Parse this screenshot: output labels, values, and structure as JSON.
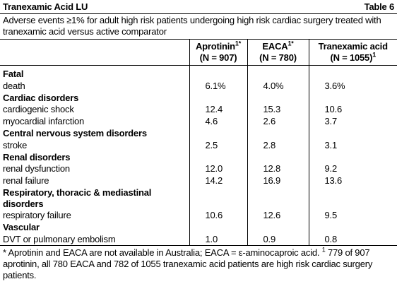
{
  "header": {
    "title": "Tranexamic Acid LU",
    "table_label": "Table 6"
  },
  "caption": "Adverse events ≥1% for adult high risk patients undergoing high risk cardiac surgery treated with tranexamic acid versus active comparator",
  "table": {
    "columns": [
      {
        "name": "Aprotinin",
        "sup": "1*",
        "n": "(N = 907)"
      },
      {
        "name": "EACA",
        "sup": "1*",
        "n": "(N = 780)"
      },
      {
        "name": "Tranexamic acid",
        "n": "(N = 1055)",
        "n_sup": "1"
      }
    ],
    "sections": [
      {
        "label": "Fatal",
        "rows": [
          [
            "death",
            "6.1%",
            "4.0%",
            "3.6%"
          ]
        ]
      },
      {
        "label": "Cardiac disorders",
        "rows": [
          [
            "cardiogenic shock",
            "12.4",
            "15.3",
            "10.6"
          ],
          [
            "myocardial infarction",
            "4.6",
            "2.6",
            "3.7"
          ]
        ]
      },
      {
        "label": "Central nervous system disorders",
        "rows": [
          [
            "stroke",
            "2.5",
            "2.8",
            "3.1"
          ]
        ]
      },
      {
        "label": "Renal disorders",
        "rows": [
          [
            "renal dysfunction",
            "12.0",
            "12.8",
            "9.2"
          ],
          [
            "renal failure",
            "14.2",
            "16.9",
            "13.6"
          ]
        ]
      },
      {
        "label": "Respiratory, thoracic & mediastinal disorders",
        "rows": [
          [
            "respiratory failure",
            "10.6",
            "12.6",
            "9.5"
          ]
        ]
      },
      {
        "label": "Vascular",
        "rows": [
          [
            "DVT or pulmonary embolism",
            "1.0",
            "0.9",
            "0.8"
          ]
        ]
      }
    ]
  },
  "footnote": {
    "text1": "* Aprotinin and EACA are not available in Australia; EACA = ε-aminocaproic acid. ",
    "sup": "1",
    "text2": " 779 of 907 aprotinin, all 780 EACA and 782 of 1055 tranexamic acid patients are high risk cardiac surgery patients."
  }
}
